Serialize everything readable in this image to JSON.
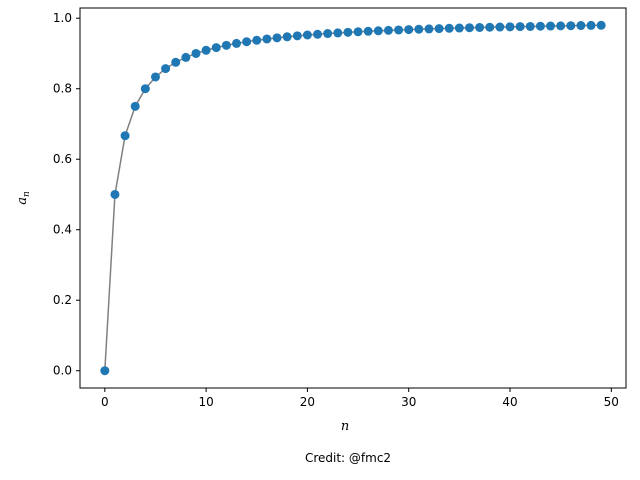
{
  "chart_data": {
    "type": "line",
    "xlabel": "n",
    "ylabel_base": "a",
    "ylabel_sub": "n",
    "credit": "Credit: @fmc2",
    "xlim": [
      -2.45,
      51.45
    ],
    "ylim": [
      -0.049,
      1.029
    ],
    "xticks": [
      0,
      10,
      20,
      30,
      40,
      50
    ],
    "yticks": [
      0.0,
      0.2,
      0.4,
      0.6,
      0.8,
      1.0
    ],
    "xtick_labels": [
      "0",
      "10",
      "20",
      "30",
      "40",
      "50"
    ],
    "ytick_labels": [
      "0.0",
      "0.2",
      "0.4",
      "0.6",
      "0.8",
      "1.0"
    ],
    "x": [
      0,
      1,
      2,
      3,
      4,
      5,
      6,
      7,
      8,
      9,
      10,
      11,
      12,
      13,
      14,
      15,
      16,
      17,
      18,
      19,
      20,
      21,
      22,
      23,
      24,
      25,
      26,
      27,
      28,
      29,
      30,
      31,
      32,
      33,
      34,
      35,
      36,
      37,
      38,
      39,
      40,
      41,
      42,
      43,
      44,
      45,
      46,
      47,
      48,
      49
    ],
    "y": [
      0.0,
      0.5,
      0.6667,
      0.75,
      0.8,
      0.8333,
      0.8571,
      0.875,
      0.8889,
      0.9,
      0.9091,
      0.9167,
      0.9231,
      0.9286,
      0.9333,
      0.9375,
      0.9412,
      0.9444,
      0.9474,
      0.95,
      0.9524,
      0.9545,
      0.9565,
      0.9583,
      0.96,
      0.9615,
      0.963,
      0.9643,
      0.9655,
      0.9667,
      0.9677,
      0.9688,
      0.9697,
      0.9706,
      0.9714,
      0.9722,
      0.973,
      0.9737,
      0.9744,
      0.975,
      0.9756,
      0.9762,
      0.9767,
      0.9773,
      0.9778,
      0.9783,
      0.9787,
      0.9792,
      0.9796,
      0.98
    ],
    "line_color": "#808080",
    "marker_color": "#1f77b4",
    "grid": false,
    "legend": "none"
  }
}
